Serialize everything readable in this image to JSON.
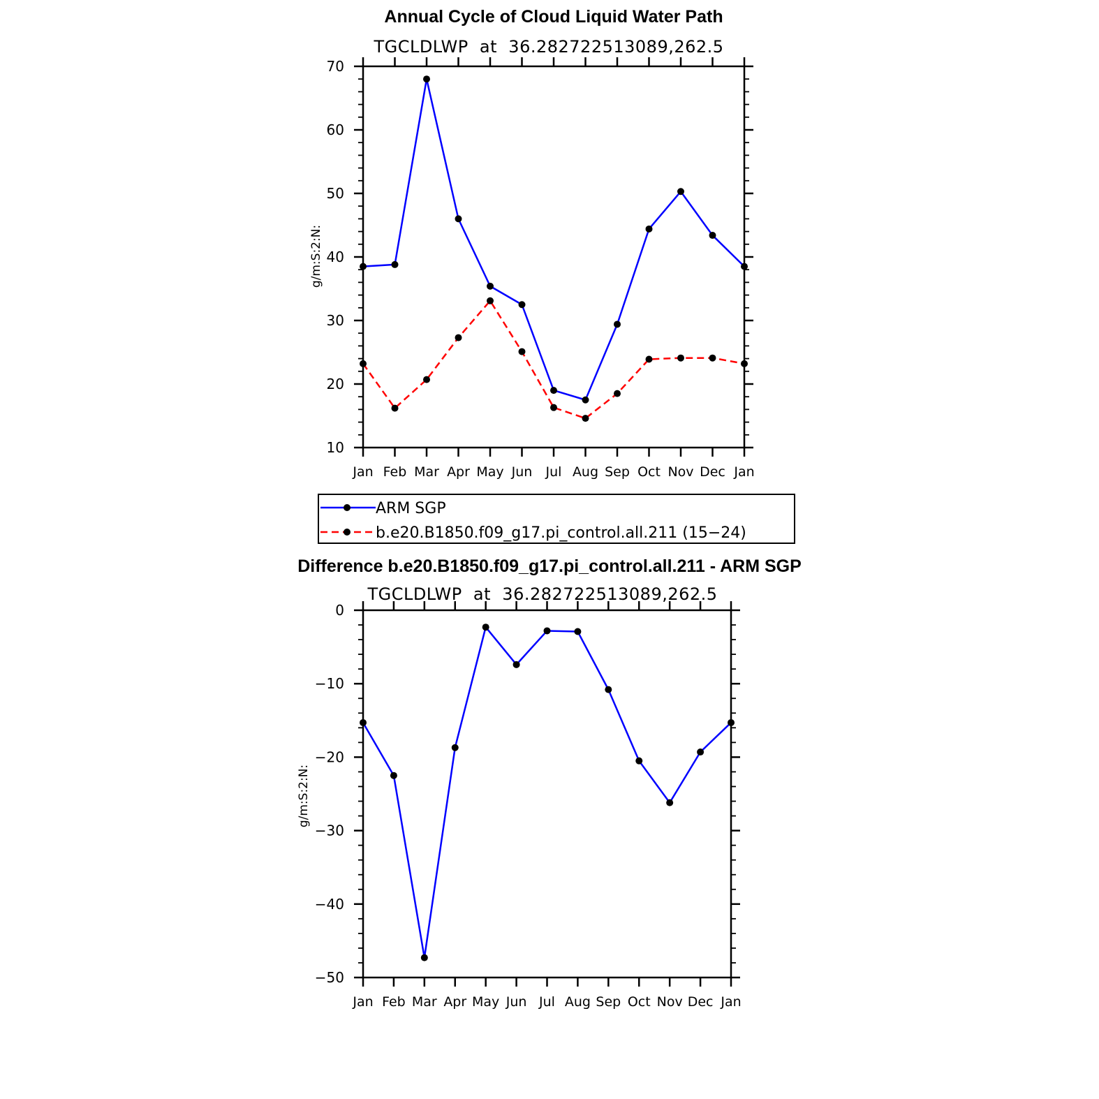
{
  "chart_data": [
    {
      "type": "line",
      "title": "Annual Cycle of Cloud Liquid Water Path",
      "subtitle": "TGCLDLWP  at  36.282722513089,262.5",
      "xlabel": "",
      "ylabel": "g/m:S:2:N:",
      "categories": [
        "Jan",
        "Feb",
        "Mar",
        "Apr",
        "May",
        "Jun",
        "Jul",
        "Aug",
        "Sep",
        "Oct",
        "Nov",
        "Dec",
        "Jan"
      ],
      "ylim": [
        10,
        70
      ],
      "yticks": [
        10,
        20,
        30,
        40,
        50,
        60,
        70
      ],
      "series": [
        {
          "name": "ARM SGP",
          "color": "#0000ff",
          "dash": "solid",
          "values": [
            38.5,
            38.8,
            68.0,
            46.0,
            35.4,
            32.5,
            19.0,
            17.5,
            29.4,
            44.4,
            50.3,
            43.4,
            38.5
          ]
        },
        {
          "name": "b.e20.B1850.f09_g17.pi_control.all.211 (15−24)",
          "color": "#ff0000",
          "dash": "dashed",
          "values": [
            23.2,
            16.2,
            20.7,
            27.3,
            33.1,
            25.1,
            16.3,
            14.6,
            18.5,
            23.9,
            24.1,
            24.1,
            23.2
          ]
        }
      ],
      "legend": "below"
    },
    {
      "type": "line",
      "title": "Difference b.e20.B1850.f09_g17.pi_control.all.211 - ARM SGP",
      "subtitle": "TGCLDLWP  at  36.282722513089,262.5",
      "xlabel": "",
      "ylabel": "g/m:S:2:N:",
      "categories": [
        "Jan",
        "Feb",
        "Mar",
        "Apr",
        "May",
        "Jun",
        "Jul",
        "Aug",
        "Sep",
        "Oct",
        "Nov",
        "Dec",
        "Jan"
      ],
      "ylim": [
        -50,
        0
      ],
      "yticks": [
        -50,
        -40,
        -30,
        -20,
        -10,
        0
      ],
      "ytick_labels": [
        "−50",
        "−40",
        "−30",
        "−20",
        "−10",
        "0"
      ],
      "series": [
        {
          "color": "#0000ff",
          "dash": "solid",
          "values": [
            -15.3,
            -22.5,
            -47.3,
            -18.7,
            -2.3,
            -7.4,
            -2.8,
            -2.9,
            -10.8,
            -20.5,
            -26.2,
            -19.3,
            -15.3
          ]
        }
      ]
    }
  ]
}
